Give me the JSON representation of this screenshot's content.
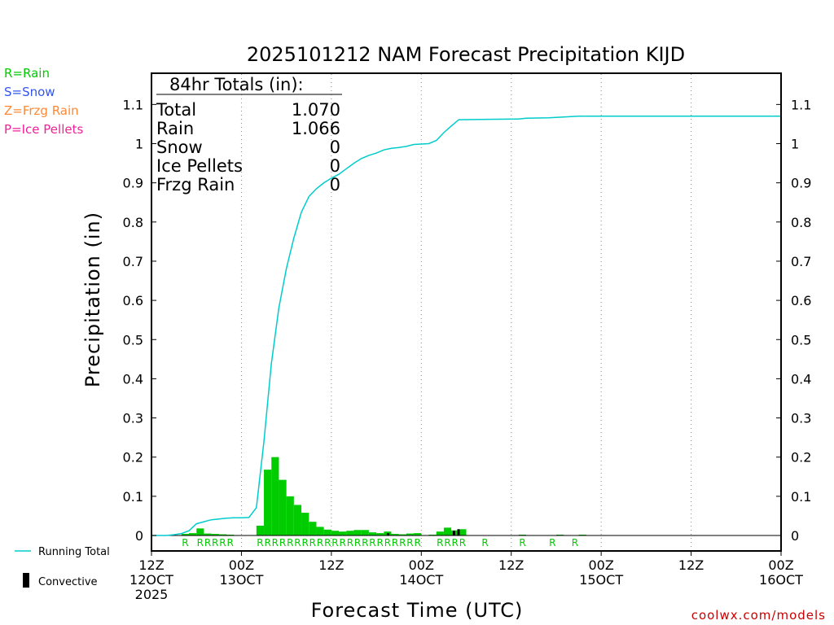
{
  "chart_data": {
    "type": "bar",
    "title": "2025101212 NAM Forecast Precipitation KIJD",
    "xlabel": "Forecast Time (UTC)",
    "ylabel": "Precipitation (in)",
    "ylim": [
      0,
      1.18
    ],
    "xlim_hours": [
      0,
      84
    ],
    "yticks": [
      0,
      0.1,
      0.2,
      0.3,
      0.4,
      0.5,
      0.6,
      0.7,
      0.8,
      0.9,
      1,
      1.1
    ],
    "ytick_labels": [
      "0",
      "0.1",
      "0.2",
      "0.3",
      "0.4",
      "0.5",
      "0.6",
      "0.7",
      "0.8",
      "0.9",
      "1",
      "1.1"
    ],
    "xticks": [
      {
        "hour": 0,
        "label1": "12Z",
        "label2": "12OCT",
        "label3": "2025"
      },
      {
        "hour": 12,
        "label1": "00Z",
        "label2": "13OCT",
        "label3": ""
      },
      {
        "hour": 24,
        "label1": "12Z",
        "label2": "",
        "label3": ""
      },
      {
        "hour": 36,
        "label1": "00Z",
        "label2": "14OCT",
        "label3": ""
      },
      {
        "hour": 48,
        "label1": "12Z",
        "label2": "",
        "label3": ""
      },
      {
        "hour": 60,
        "label1": "00Z",
        "label2": "15OCT",
        "label3": ""
      },
      {
        "hour": 72,
        "label1": "12Z",
        "label2": "",
        "label3": ""
      },
      {
        "hour": 84,
        "label1": "00Z",
        "label2": "16OCT",
        "label3": ""
      }
    ],
    "bar_hour_width": 1,
    "bars": [
      {
        "h": 4,
        "v": 0.004
      },
      {
        "h": 5,
        "v": 0.006
      },
      {
        "h": 6,
        "v": 0.018
      },
      {
        "h": 7,
        "v": 0.005
      },
      {
        "h": 8,
        "v": 0.004
      },
      {
        "h": 9,
        "v": 0.003
      },
      {
        "h": 10,
        "v": 0.002
      },
      {
        "h": 14,
        "v": 0.025
      },
      {
        "h": 15,
        "v": 0.168
      },
      {
        "h": 16,
        "v": 0.2
      },
      {
        "h": 17,
        "v": 0.142
      },
      {
        "h": 18,
        "v": 0.1
      },
      {
        "h": 19,
        "v": 0.078
      },
      {
        "h": 20,
        "v": 0.058
      },
      {
        "h": 21,
        "v": 0.035
      },
      {
        "h": 22,
        "v": 0.022
      },
      {
        "h": 23,
        "v": 0.015
      },
      {
        "h": 24,
        "v": 0.012
      },
      {
        "h": 25,
        "v": 0.01
      },
      {
        "h": 26,
        "v": 0.012
      },
      {
        "h": 27,
        "v": 0.014
      },
      {
        "h": 28,
        "v": 0.014
      },
      {
        "h": 29,
        "v": 0.008
      },
      {
        "h": 30,
        "v": 0.006
      },
      {
        "h": 31,
        "v": 0.01
      },
      {
        "h": 32,
        "v": 0.004
      },
      {
        "h": 33,
        "v": 0.003
      },
      {
        "h": 34,
        "v": 0.005
      },
      {
        "h": 35,
        "v": 0.006
      },
      {
        "h": 37,
        "v": 0.002
      },
      {
        "h": 38,
        "v": 0.01
      },
      {
        "h": 39,
        "v": 0.02
      },
      {
        "h": 40,
        "v": 0.013
      },
      {
        "h": 41,
        "v": 0.016
      },
      {
        "h": 49,
        "v": 0.002
      },
      {
        "h": 54,
        "v": 0.002
      },
      {
        "h": 57,
        "v": 0.002
      }
    ],
    "convective_bars": [
      {
        "h": 31.4,
        "v": 0.006
      },
      {
        "h": 40.2,
        "v": 0.012
      },
      {
        "h": 40.8,
        "v": 0.016
      }
    ],
    "running_total": [
      [
        0,
        0
      ],
      [
        1,
        0
      ],
      [
        2,
        0
      ],
      [
        3,
        0.002
      ],
      [
        4,
        0.005
      ],
      [
        5,
        0.012
      ],
      [
        6,
        0.03
      ],
      [
        7,
        0.035
      ],
      [
        8,
        0.04
      ],
      [
        9,
        0.042
      ],
      [
        10,
        0.044
      ],
      [
        11,
        0.045
      ],
      [
        12,
        0.045
      ],
      [
        13,
        0.046
      ],
      [
        14,
        0.071
      ],
      [
        15,
        0.239
      ],
      [
        16,
        0.439
      ],
      [
        17,
        0.581
      ],
      [
        18,
        0.681
      ],
      [
        19,
        0.759
      ],
      [
        20,
        0.825
      ],
      [
        21,
        0.865
      ],
      [
        22,
        0.885
      ],
      [
        23,
        0.9
      ],
      [
        24,
        0.912
      ],
      [
        25,
        0.922
      ],
      [
        26,
        0.936
      ],
      [
        27,
        0.95
      ],
      [
        28,
        0.962
      ],
      [
        29,
        0.97
      ],
      [
        30,
        0.976
      ],
      [
        31,
        0.984
      ],
      [
        32,
        0.988
      ],
      [
        33,
        0.99
      ],
      [
        34,
        0.993
      ],
      [
        35,
        0.998
      ],
      [
        36,
        0.999
      ],
      [
        37,
        1.0
      ],
      [
        38,
        1.008
      ],
      [
        39,
        1.028
      ],
      [
        40,
        1.045
      ],
      [
        41,
        1.061
      ],
      [
        45,
        1.062
      ],
      [
        49,
        1.063
      ],
      [
        50,
        1.065
      ],
      [
        53,
        1.066
      ],
      [
        55,
        1.068
      ],
      [
        57,
        1.07
      ],
      [
        60,
        1.07
      ],
      [
        84,
        1.07
      ]
    ],
    "ptype_markers": [
      {
        "h": 4.5,
        "t": "R"
      },
      {
        "h": 6.5,
        "t": "R"
      },
      {
        "h": 7.5,
        "t": "R"
      },
      {
        "h": 8.5,
        "t": "R"
      },
      {
        "h": 9.5,
        "t": "R"
      },
      {
        "h": 10.5,
        "t": "R"
      },
      {
        "h": 14.5,
        "t": "R"
      },
      {
        "h": 15.5,
        "t": "R"
      },
      {
        "h": 16.5,
        "t": "R"
      },
      {
        "h": 17.5,
        "t": "R"
      },
      {
        "h": 18.5,
        "t": "R"
      },
      {
        "h": 19.5,
        "t": "R"
      },
      {
        "h": 20.5,
        "t": "R"
      },
      {
        "h": 21.5,
        "t": "R"
      },
      {
        "h": 22.5,
        "t": "R"
      },
      {
        "h": 23.5,
        "t": "R"
      },
      {
        "h": 24.5,
        "t": "R"
      },
      {
        "h": 25.5,
        "t": "R"
      },
      {
        "h": 26.5,
        "t": "R"
      },
      {
        "h": 27.5,
        "t": "R"
      },
      {
        "h": 28.5,
        "t": "R"
      },
      {
        "h": 29.5,
        "t": "R"
      },
      {
        "h": 30.5,
        "t": "R"
      },
      {
        "h": 31.5,
        "t": "R"
      },
      {
        "h": 32.5,
        "t": "R"
      },
      {
        "h": 33.5,
        "t": "R"
      },
      {
        "h": 34.5,
        "t": "R"
      },
      {
        "h": 35.5,
        "t": "R"
      },
      {
        "h": 38.5,
        "t": "R"
      },
      {
        "h": 39.5,
        "t": "R"
      },
      {
        "h": 40.5,
        "t": "R"
      },
      {
        "h": 41.5,
        "t": "R"
      },
      {
        "h": 44.5,
        "t": "R"
      },
      {
        "h": 49.5,
        "t": "R"
      },
      {
        "h": 53.5,
        "t": "R"
      },
      {
        "h": 56.5,
        "t": "R"
      }
    ],
    "totals_box": {
      "heading": "84hr Totals (in):",
      "rows": [
        {
          "label": "Total",
          "value": "1.070"
        },
        {
          "label": "Rain",
          "value": "1.066"
        },
        {
          "label": "Snow",
          "value": "0"
        },
        {
          "label": "Ice Pellets",
          "value": "0"
        },
        {
          "label": "Frzg Rain",
          "value": "0"
        }
      ]
    },
    "ptype_legend": [
      {
        "text": "R=Rain",
        "color": "#00cc00"
      },
      {
        "text": "S=Snow",
        "color": "#3355ee"
      },
      {
        "text": "Z=Frzg Rain",
        "color": "#ff8833"
      },
      {
        "text": "P=Ice Pellets",
        "color": "#ee2299"
      }
    ],
    "series_legend": {
      "running_total": "Running Total",
      "convective": "Convective"
    },
    "colors": {
      "bars": "#00cc00",
      "convective": "#000000",
      "running_total": "#00cccc",
      "grid": "#888888",
      "credit": "#cc0000"
    }
  },
  "credit": "coolwx.com/models"
}
